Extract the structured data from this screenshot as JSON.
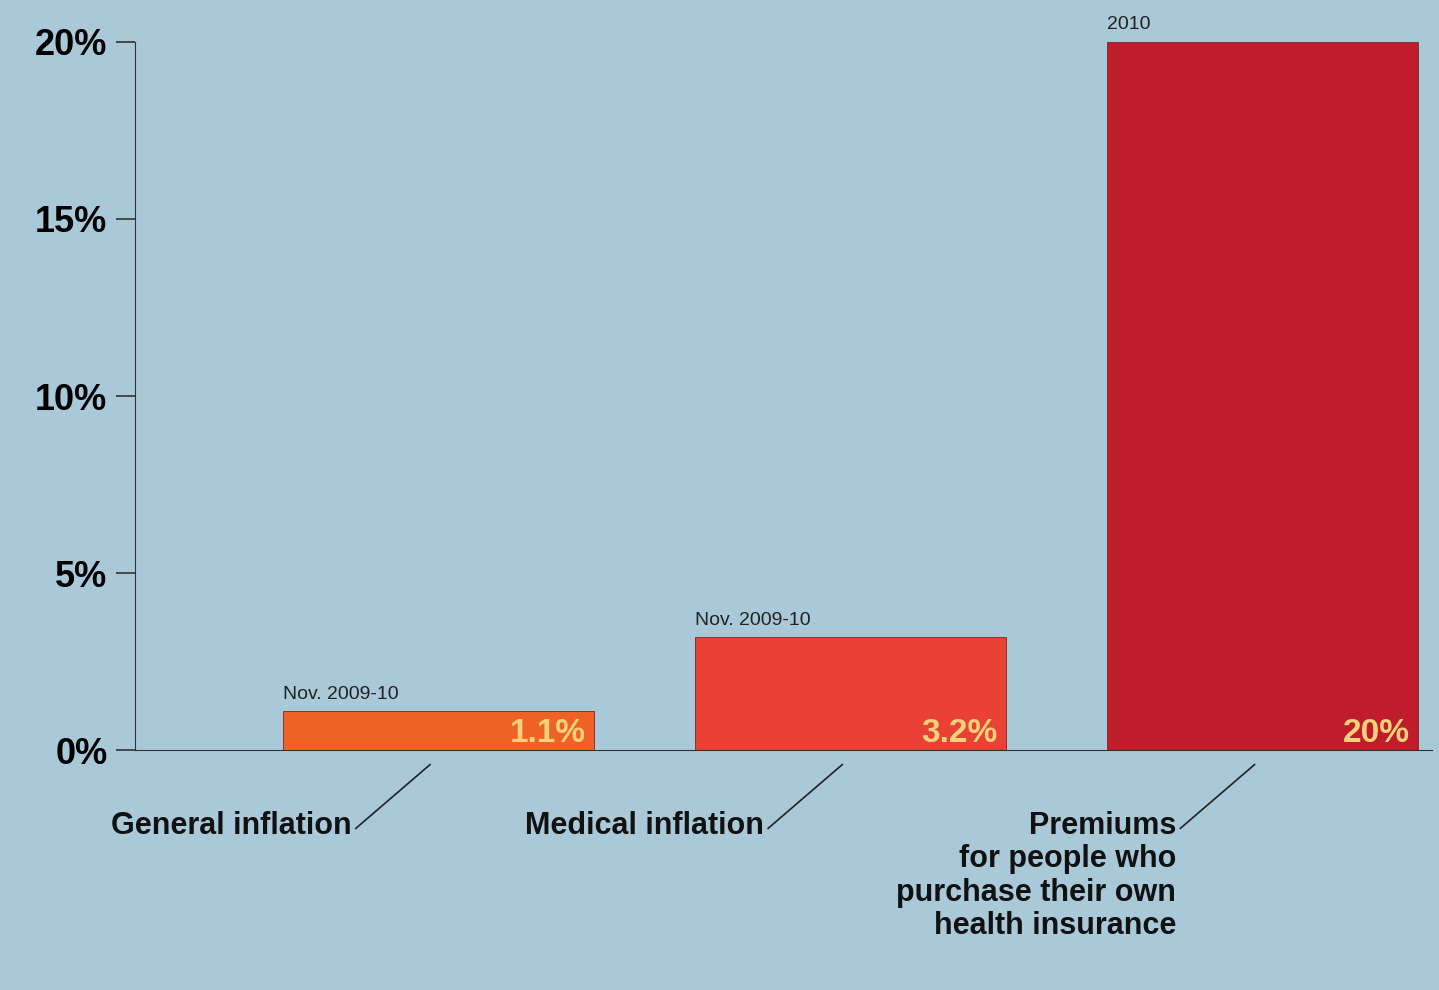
{
  "chart_data": {
    "type": "bar",
    "categories": [
      "General inflation",
      "Medical inflation",
      "Premiums\nfor people who\npurchase their own\nhealth insurance"
    ],
    "values": [
      1.1,
      3.2,
      20
    ],
    "value_labels": [
      "1.1%",
      "3.2%",
      "20%"
    ],
    "period_labels": [
      "Nov. 2009-10",
      "Nov. 2009-10",
      "2010"
    ],
    "colors": [
      "#f06126",
      "#ea4135",
      "#c01d2c"
    ],
    "data_labels": true,
    "ylim": [
      0,
      20
    ],
    "yticks": [
      {
        "value": 0,
        "label": "0%"
      },
      {
        "value": 5,
        "label": "5%"
      },
      {
        "value": 10,
        "label": "10%"
      },
      {
        "value": 15,
        "label": "15%"
      },
      {
        "value": 20,
        "label": "20%"
      }
    ],
    "grid": false
  }
}
